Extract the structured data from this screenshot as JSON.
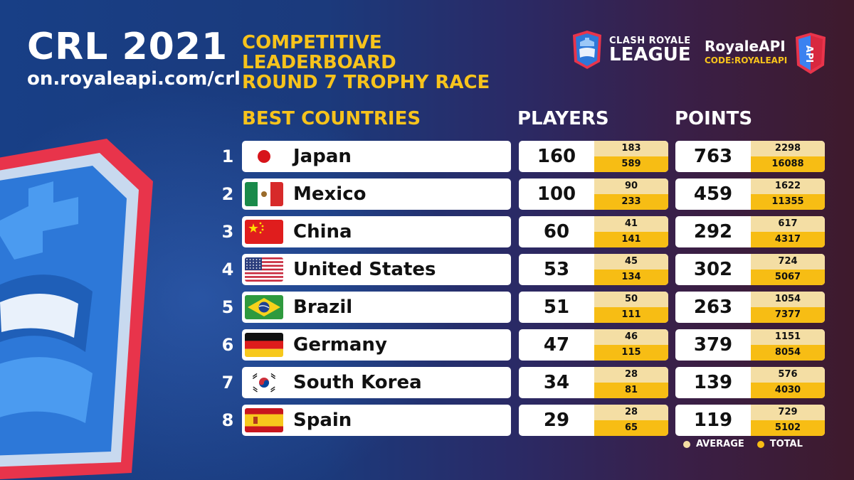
{
  "header": {
    "title": "CRL 2021",
    "url": "on.royaleapi.com/crl",
    "subtitle_lines": [
      "COMPETITIVE",
      "LEADERBOARD",
      "ROUND 7 TROPHY RACE"
    ]
  },
  "logos": {
    "league_line1": "CLASH ROYALE",
    "league_line2": "LEAGUE",
    "royaleapi_name": "RoyaleAPI",
    "royaleapi_code": "CODE:ROYALEAPI",
    "api_badge": "API"
  },
  "columns": {
    "countries": "BEST COUNTRIES",
    "players": "PLAYERS",
    "points": "POINTS"
  },
  "rows": [
    {
      "rank": "1",
      "country": "Japan",
      "flag": "japan-flag-icon",
      "players": "160",
      "players_avg": "183",
      "players_total": "589",
      "points": "763",
      "points_avg": "2298",
      "points_total": "16088"
    },
    {
      "rank": "2",
      "country": "Mexico",
      "flag": "mexico-flag-icon",
      "players": "100",
      "players_avg": "90",
      "players_total": "233",
      "points": "459",
      "points_avg": "1622",
      "points_total": "11355"
    },
    {
      "rank": "3",
      "country": "China",
      "flag": "china-flag-icon",
      "players": "60",
      "players_avg": "41",
      "players_total": "141",
      "points": "292",
      "points_avg": "617",
      "points_total": "4317"
    },
    {
      "rank": "4",
      "country": "United States",
      "flag": "usa-flag-icon",
      "players": "53",
      "players_avg": "45",
      "players_total": "134",
      "points": "302",
      "points_avg": "724",
      "points_total": "5067"
    },
    {
      "rank": "5",
      "country": "Brazil",
      "flag": "brazil-flag-icon",
      "players": "51",
      "players_avg": "50",
      "players_total": "111",
      "points": "263",
      "points_avg": "1054",
      "points_total": "7377"
    },
    {
      "rank": "6",
      "country": "Germany",
      "flag": "germany-flag-icon",
      "players": "47",
      "players_avg": "46",
      "players_total": "115",
      "points": "379",
      "points_avg": "1151",
      "points_total": "8054"
    },
    {
      "rank": "7",
      "country": "South Korea",
      "flag": "south-korea-flag-icon",
      "players": "34",
      "players_avg": "28",
      "players_total": "81",
      "points": "139",
      "points_avg": "576",
      "points_total": "4030"
    },
    {
      "rank": "8",
      "country": "Spain",
      "flag": "spain-flag-icon",
      "players": "29",
      "players_avg": "28",
      "players_total": "65",
      "points": "119",
      "points_avg": "729",
      "points_total": "5102"
    }
  ],
  "legend": {
    "average": "AVERAGE",
    "total": "TOTAL",
    "average_color": "#f4dea4",
    "total_color": "#f7bd14"
  },
  "colors": {
    "accent_yellow": "#f7c31c",
    "bg_blue": "#1b3a7c",
    "bg_maroon": "#3e1a2c"
  }
}
